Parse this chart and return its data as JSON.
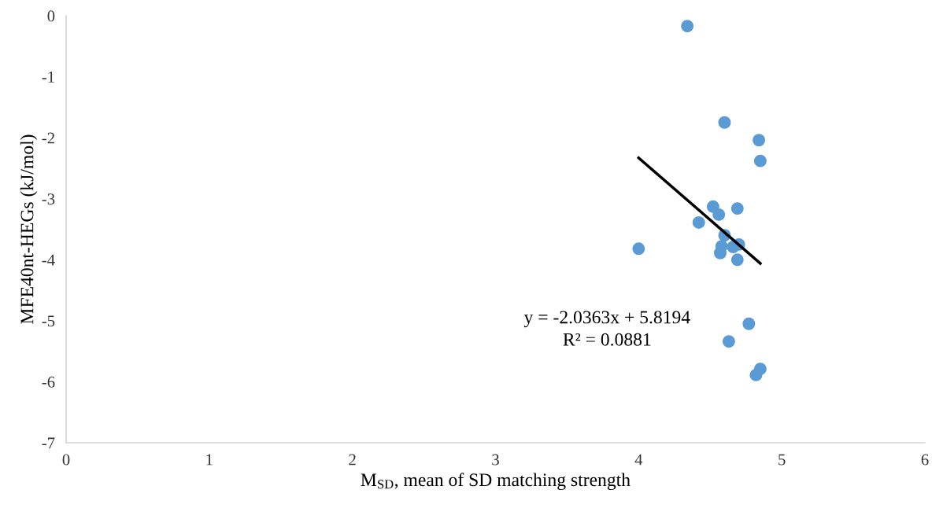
{
  "chart_data": {
    "type": "scatter",
    "xlabel": "M$_{SD}$, mean of SD matching strength",
    "ylabel": "MFE40nt-HEGs (kJ/mol)",
    "xlim": [
      0,
      6
    ],
    "xticks": [
      0,
      1,
      2,
      3,
      4,
      5,
      6
    ],
    "ylim": [
      -7,
      0
    ],
    "yticks": [
      -7,
      -6,
      -5,
      -4,
      -3,
      -2,
      -1,
      0
    ],
    "grid": false,
    "legend": false,
    "annotations": [
      "y = -2.0363x + 5.8194",
      "R² = 0.0881"
    ],
    "series": [
      {
        "marker": "circle",
        "color": "#5b9bd5",
        "x": [
          4.34,
          4.6,
          4.84,
          4.85,
          4.52,
          4.56,
          4.69,
          4.42,
          4.6,
          4.58,
          4.66,
          4.7,
          4.57,
          4.69,
          4.0,
          4.77,
          4.63,
          4.85,
          4.82
        ],
        "values": [
          -0.17,
          -1.75,
          -2.04,
          -2.38,
          -3.13,
          -3.26,
          -3.16,
          -3.39,
          -3.6,
          -3.78,
          -3.79,
          -3.75,
          -3.89,
          -4.0,
          -3.82,
          -5.05,
          -5.34,
          -5.79,
          -5.89
        ]
      },
      {
        "type": "line",
        "color": "#000000",
        "x": [
          4.0,
          4.85
        ],
        "values": [
          -2.33,
          -4.06
        ]
      }
    ]
  }
}
